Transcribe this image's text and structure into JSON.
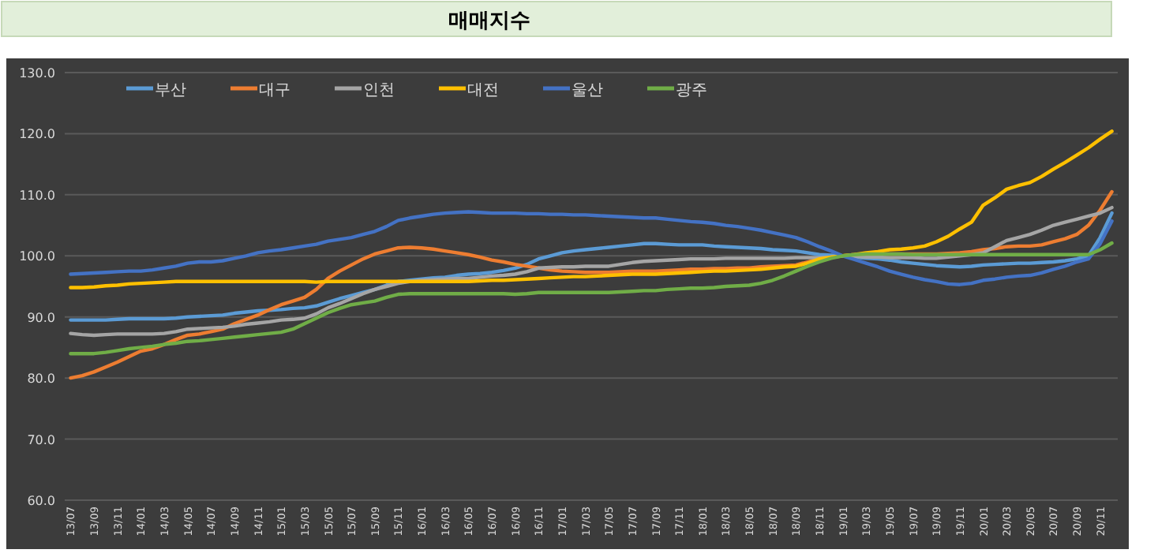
{
  "chart_data": {
    "type": "line",
    "title": "매매지수",
    "categories": [
      "13/07",
      null,
      "13/09",
      null,
      "13/11",
      null,
      "14/01",
      null,
      "14/03",
      null,
      "14/05",
      null,
      "14/07",
      null,
      "14/09",
      null,
      "14/11",
      null,
      "15/01",
      null,
      "15/03",
      null,
      "15/05",
      null,
      "15/07",
      null,
      "15/09",
      null,
      "15/11",
      null,
      "16/01",
      null,
      "16/03",
      null,
      "16/05",
      null,
      "16/07",
      null,
      "16/09",
      null,
      "16/11",
      null,
      "17/01",
      null,
      "17/03",
      null,
      "17/05",
      null,
      "17/07",
      null,
      "17/09",
      null,
      "17/11",
      null,
      "18/01",
      null,
      "18/03",
      null,
      "18/05",
      null,
      "18/07",
      null,
      "18/09",
      null,
      "18/11",
      null,
      "19/01",
      null,
      "19/03",
      null,
      "19/05",
      null,
      "19/07",
      null,
      "19/09",
      null,
      "19/11",
      null,
      "20/01",
      null,
      "20/03",
      null,
      "20/05",
      null,
      "20/07",
      null,
      "20/09",
      null,
      "20/11",
      null
    ],
    "series": [
      {
        "name": "부산",
        "color": "#5b9bd5",
        "values": [
          89.5,
          89.5,
          89.5,
          89.5,
          89.6,
          89.7,
          89.7,
          89.7,
          89.7,
          89.8,
          90.0,
          90.1,
          90.2,
          90.3,
          90.6,
          90.8,
          91.0,
          91.1,
          91.2,
          91.4,
          91.5,
          91.8,
          92.4,
          93.0,
          93.5,
          94.0,
          94.5,
          95.2,
          95.8,
          96.0,
          96.2,
          96.4,
          96.5,
          96.8,
          97.0,
          97.1,
          97.3,
          97.6,
          98.0,
          98.6,
          99.5,
          100.0,
          100.5,
          100.8,
          101.0,
          101.2,
          101.4,
          101.6,
          101.8,
          102.0,
          102.0,
          101.9,
          101.8,
          101.8,
          101.8,
          101.6,
          101.5,
          101.4,
          101.3,
          101.2,
          101.0,
          100.9,
          100.8,
          100.5,
          100.2,
          100.1,
          100.0,
          99.8,
          99.6,
          99.5,
          99.3,
          99.0,
          98.8,
          98.6,
          98.4,
          98.3,
          98.2,
          98.3,
          98.5,
          98.6,
          98.7,
          98.8,
          98.8,
          98.9,
          99.0,
          99.2,
          99.5,
          100.0,
          103.0,
          107.0
        ]
      },
      {
        "name": "대구",
        "color": "#ed7d31",
        "values": [
          80.0,
          80.4,
          81.0,
          81.8,
          82.6,
          83.5,
          84.4,
          84.8,
          85.5,
          86.3,
          87.0,
          87.2,
          87.6,
          88.0,
          88.9,
          89.6,
          90.3,
          91.2,
          92.0,
          92.6,
          93.2,
          94.5,
          96.3,
          97.5,
          98.5,
          99.5,
          100.3,
          100.8,
          101.3,
          101.4,
          101.3,
          101.1,
          100.8,
          100.5,
          100.2,
          99.8,
          99.3,
          99.0,
          98.6,
          98.3,
          98.0,
          97.7,
          97.5,
          97.4,
          97.3,
          97.3,
          97.3,
          97.4,
          97.5,
          97.5,
          97.5,
          97.6,
          97.7,
          97.8,
          97.8,
          97.9,
          97.9,
          98.0,
          98.0,
          98.2,
          98.3,
          98.4,
          98.5,
          99.0,
          99.5,
          99.8,
          100.0,
          100.2,
          100.3,
          100.3,
          100.3,
          100.3,
          100.3,
          100.3,
          100.3,
          100.4,
          100.5,
          100.7,
          101.0,
          101.2,
          101.5,
          101.6,
          101.6,
          101.8,
          102.3,
          102.8,
          103.5,
          105.0,
          107.5,
          110.5
        ]
      },
      {
        "name": "인천",
        "color": "#a5a5a5",
        "values": [
          87.3,
          87.1,
          87.0,
          87.1,
          87.2,
          87.2,
          87.2,
          87.2,
          87.3,
          87.6,
          88.0,
          88.1,
          88.2,
          88.3,
          88.5,
          88.8,
          89.0,
          89.2,
          89.5,
          89.6,
          89.8,
          90.5,
          91.5,
          92.2,
          93.0,
          93.8,
          94.5,
          95.0,
          95.5,
          95.8,
          96.0,
          96.1,
          96.2,
          96.3,
          96.3,
          96.5,
          96.7,
          96.8,
          97.0,
          97.4,
          98.0,
          98.1,
          98.2,
          98.2,
          98.3,
          98.3,
          98.3,
          98.6,
          98.9,
          99.1,
          99.2,
          99.3,
          99.4,
          99.5,
          99.5,
          99.5,
          99.6,
          99.6,
          99.6,
          99.6,
          99.6,
          99.6,
          99.7,
          99.7,
          99.7,
          99.8,
          100.0,
          99.9,
          99.8,
          99.8,
          99.7,
          99.7,
          99.7,
          99.6,
          99.6,
          99.8,
          100.0,
          100.2,
          100.5,
          101.5,
          102.5,
          103.0,
          103.5,
          104.2,
          105.0,
          105.5,
          106.0,
          106.5,
          107.0,
          107.9
        ]
      },
      {
        "name": "대전",
        "color": "#ffc000",
        "values": [
          94.8,
          94.8,
          94.9,
          95.1,
          95.2,
          95.4,
          95.5,
          95.6,
          95.7,
          95.8,
          95.8,
          95.8,
          95.8,
          95.8,
          95.8,
          95.8,
          95.8,
          95.8,
          95.8,
          95.8,
          95.8,
          95.7,
          95.8,
          95.8,
          95.8,
          95.8,
          95.8,
          95.8,
          95.8,
          95.8,
          95.8,
          95.8,
          95.8,
          95.8,
          95.8,
          95.9,
          96.0,
          96.0,
          96.1,
          96.2,
          96.3,
          96.4,
          96.5,
          96.6,
          96.6,
          96.7,
          96.8,
          96.9,
          97.0,
          97.0,
          97.0,
          97.1,
          97.2,
          97.3,
          97.4,
          97.5,
          97.5,
          97.6,
          97.7,
          97.8,
          98.0,
          98.2,
          98.3,
          98.8,
          99.5,
          99.8,
          100.0,
          100.2,
          100.5,
          100.7,
          101.0,
          101.1,
          101.3,
          101.6,
          102.3,
          103.2,
          104.4,
          105.5,
          108.3,
          109.5,
          110.9,
          111.5,
          112.0,
          113.0,
          114.2,
          115.3,
          116.5,
          117.7,
          119.1,
          120.4
        ]
      },
      {
        "name": "울산",
        "color": "#4472c4",
        "values": [
          97.0,
          97.1,
          97.2,
          97.3,
          97.4,
          97.5,
          97.5,
          97.7,
          98.0,
          98.3,
          98.8,
          99.0,
          99.0,
          99.2,
          99.6,
          100.0,
          100.5,
          100.8,
          101.0,
          101.3,
          101.6,
          101.9,
          102.4,
          102.7,
          103.0,
          103.5,
          104.0,
          104.8,
          105.8,
          106.2,
          106.5,
          106.8,
          107.0,
          107.1,
          107.2,
          107.1,
          107.0,
          107.0,
          107.0,
          106.9,
          106.9,
          106.8,
          106.8,
          106.7,
          106.7,
          106.6,
          106.5,
          106.4,
          106.3,
          106.2,
          106.2,
          106.0,
          105.8,
          105.6,
          105.5,
          105.3,
          105.0,
          104.8,
          104.5,
          104.2,
          103.8,
          103.4,
          103.0,
          102.3,
          101.5,
          100.8,
          100.0,
          99.4,
          98.8,
          98.2,
          97.5,
          97.0,
          96.5,
          96.1,
          95.8,
          95.4,
          95.3,
          95.5,
          96.0,
          96.2,
          96.5,
          96.7,
          96.8,
          97.2,
          97.8,
          98.3,
          99.0,
          99.5,
          102.0,
          105.7
        ]
      },
      {
        "name": "광주",
        "color": "#70ad47",
        "values": [
          84.0,
          84.0,
          84.0,
          84.2,
          84.5,
          84.8,
          85.0,
          85.2,
          85.5,
          85.7,
          86.0,
          86.1,
          86.3,
          86.5,
          86.7,
          86.9,
          87.1,
          87.3,
          87.5,
          88.0,
          88.9,
          89.8,
          90.7,
          91.4,
          92.0,
          92.3,
          92.6,
          93.2,
          93.7,
          93.8,
          93.8,
          93.8,
          93.8,
          93.8,
          93.8,
          93.8,
          93.8,
          93.8,
          93.7,
          93.8,
          94.0,
          94.0,
          94.0,
          94.0,
          94.0,
          94.0,
          94.0,
          94.1,
          94.2,
          94.3,
          94.3,
          94.5,
          94.6,
          94.7,
          94.7,
          94.8,
          95.0,
          95.1,
          95.2,
          95.5,
          96.0,
          96.7,
          97.5,
          98.3,
          99.0,
          99.6,
          100.0,
          100.2,
          100.3,
          100.3,
          100.3,
          100.3,
          100.2,
          100.2,
          100.2,
          100.2,
          100.2,
          100.2,
          100.2,
          100.2,
          100.2,
          100.2,
          100.2,
          100.2,
          100.2,
          100.2,
          100.2,
          100.2,
          101.0,
          102.1
        ]
      }
    ],
    "ylim": [
      60,
      130
    ],
    "yticks": [
      {
        "value": 60,
        "label": "60.0"
      },
      {
        "value": 70,
        "label": "70.0"
      },
      {
        "value": 80,
        "label": "80.0"
      },
      {
        "value": 90,
        "label": "90.0"
      },
      {
        "value": 100,
        "label": "100.0"
      },
      {
        "value": 110,
        "label": "110.0"
      },
      {
        "value": 120,
        "label": "120.0"
      },
      {
        "value": 130,
        "label": "130.0"
      }
    ],
    "grid": "y",
    "legend": "top"
  }
}
